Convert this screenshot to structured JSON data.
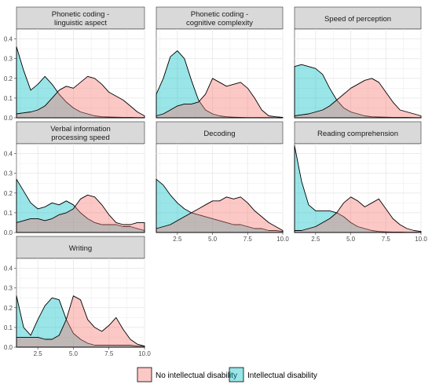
{
  "colors": {
    "no_id_fill": "#f8766d",
    "id_fill": "#00bfc4",
    "strip_bg": "#d9d9d9",
    "grid": "#ebebeb",
    "outline": "#000000"
  },
  "legend": {
    "items": [
      {
        "label": "No intellectual disability",
        "color": "#f8766d"
      },
      {
        "label": "Intellectual disability",
        "color": "#00bfc4"
      }
    ],
    "position": "bottom"
  },
  "chart_data": {
    "type": "area",
    "subtype": "density faceted",
    "title": "",
    "xlabel": "",
    "ylabel": "",
    "xlim": [
      1,
      10
    ],
    "ylim": [
      0,
      0.45
    ],
    "grid": true,
    "x_ticks": [
      "2.5",
      "5.0",
      "7.5",
      "10.0"
    ],
    "y_ticks": [
      "0.0",
      "0.1",
      "0.2",
      "0.3",
      "0.4"
    ],
    "series_names": [
      "No intellectual disability",
      "Intellectual disability"
    ],
    "panels": [
      {
        "title_lines": [
          "Phonetic coding -",
          "linguistic aspect"
        ],
        "series": [
          {
            "name": "No intellectual disability",
            "x": [
              1,
              1.5,
              2,
              2.5,
              3,
              3.5,
              4,
              4.5,
              5,
              5.5,
              6,
              6.5,
              7,
              7.5,
              8,
              8.5,
              9,
              9.5,
              10
            ],
            "y": [
              0.02,
              0.025,
              0.03,
              0.04,
              0.06,
              0.1,
              0.14,
              0.16,
              0.15,
              0.18,
              0.21,
              0.2,
              0.17,
              0.13,
              0.11,
              0.09,
              0.06,
              0.03,
              0.01
            ]
          },
          {
            "name": "Intellectual disability",
            "x": [
              1,
              1.5,
              2,
              2.5,
              3,
              3.5,
              4,
              4.5,
              5,
              5.5,
              6,
              6.5,
              7,
              7.5,
              8,
              8.5,
              9,
              9.5,
              10
            ],
            "y": [
              0.36,
              0.24,
              0.14,
              0.17,
              0.21,
              0.17,
              0.12,
              0.08,
              0.05,
              0.03,
              0.02,
              0.01,
              0.005,
              0.004,
              0.003,
              0.002,
              0.002,
              0.001,
              0.001
            ]
          }
        ]
      },
      {
        "title_lines": [
          "Phonetic coding -",
          "cognitive complexity"
        ],
        "series": [
          {
            "name": "No intellectual disability",
            "x": [
              1,
              1.5,
              2,
              2.5,
              3,
              3.5,
              4,
              4.5,
              5,
              5.5,
              6,
              6.5,
              7,
              7.5,
              8,
              8.5,
              9,
              9.5,
              10
            ],
            "y": [
              0.01,
              0.02,
              0.04,
              0.06,
              0.07,
              0.07,
              0.08,
              0.12,
              0.2,
              0.18,
              0.16,
              0.17,
              0.18,
              0.15,
              0.1,
              0.04,
              0.01,
              0.005,
              0.002
            ]
          },
          {
            "name": "Intellectual disability",
            "x": [
              1,
              1.5,
              2,
              2.5,
              3,
              3.5,
              4,
              4.5,
              5,
              5.5,
              6,
              6.5,
              7,
              7.5,
              8,
              8.5,
              9,
              9.5,
              10
            ],
            "y": [
              0.12,
              0.2,
              0.31,
              0.34,
              0.3,
              0.19,
              0.09,
              0.04,
              0.02,
              0.01,
              0.005,
              0.003,
              0.002,
              0.001,
              0.001,
              0.001,
              0.001,
              0.0,
              0.0
            ]
          }
        ]
      },
      {
        "title_lines": [
          "Speed of perception"
        ],
        "series": [
          {
            "name": "No intellectual disability",
            "x": [
              1,
              1.5,
              2,
              2.5,
              3,
              3.5,
              4,
              4.5,
              5,
              5.5,
              6,
              6.5,
              7,
              7.5,
              8,
              8.5,
              9,
              9.5,
              10
            ],
            "y": [
              0.01,
              0.015,
              0.02,
              0.03,
              0.04,
              0.06,
              0.09,
              0.12,
              0.15,
              0.17,
              0.19,
              0.2,
              0.18,
              0.13,
              0.08,
              0.04,
              0.03,
              0.02,
              0.01
            ]
          },
          {
            "name": "Intellectual disability",
            "x": [
              1,
              1.5,
              2,
              2.5,
              3,
              3.5,
              4,
              4.5,
              5,
              5.5,
              6,
              6.5,
              7,
              7.5,
              8,
              8.5,
              9,
              9.5,
              10
            ],
            "y": [
              0.26,
              0.27,
              0.26,
              0.25,
              0.22,
              0.15,
              0.09,
              0.05,
              0.03,
              0.02,
              0.01,
              0.005,
              0.004,
              0.003,
              0.002,
              0.002,
              0.002,
              0.001,
              0.001
            ]
          }
        ]
      },
      {
        "title_lines": [
          "Verbal information",
          "processing speed"
        ],
        "series": [
          {
            "name": "No intellectual disability",
            "x": [
              1,
              1.5,
              2,
              2.5,
              3,
              3.5,
              4,
              4.5,
              5,
              5.5,
              6,
              6.5,
              7,
              7.5,
              8,
              8.5,
              9,
              9.5,
              10
            ],
            "y": [
              0.05,
              0.06,
              0.07,
              0.07,
              0.06,
              0.07,
              0.09,
              0.1,
              0.12,
              0.17,
              0.19,
              0.18,
              0.14,
              0.09,
              0.05,
              0.04,
              0.04,
              0.05,
              0.05
            ]
          },
          {
            "name": "Intellectual disability",
            "x": [
              1,
              1.5,
              2,
              2.5,
              3,
              3.5,
              4,
              4.5,
              5,
              5.5,
              6,
              6.5,
              7,
              7.5,
              8,
              8.5,
              9,
              9.5,
              10
            ],
            "y": [
              0.27,
              0.21,
              0.15,
              0.12,
              0.13,
              0.15,
              0.14,
              0.16,
              0.14,
              0.1,
              0.07,
              0.05,
              0.04,
              0.04,
              0.04,
              0.03,
              0.03,
              0.02,
              0.01
            ]
          }
        ]
      },
      {
        "title_lines": [
          "Decoding"
        ],
        "series": [
          {
            "name": "No intellectual disability",
            "x": [
              1,
              1.5,
              2,
              2.5,
              3,
              3.5,
              4,
              4.5,
              5,
              5.5,
              6,
              6.5,
              7,
              7.5,
              8,
              8.5,
              9,
              9.5,
              10
            ],
            "y": [
              0.02,
              0.03,
              0.04,
              0.06,
              0.08,
              0.1,
              0.12,
              0.14,
              0.16,
              0.16,
              0.18,
              0.17,
              0.18,
              0.15,
              0.11,
              0.08,
              0.05,
              0.03,
              0.01
            ]
          },
          {
            "name": "Intellectual disability",
            "x": [
              1,
              1.5,
              2,
              2.5,
              3,
              3.5,
              4,
              4.5,
              5,
              5.5,
              6,
              6.5,
              7,
              7.5,
              8,
              8.5,
              9,
              9.5,
              10
            ],
            "y": [
              0.27,
              0.24,
              0.19,
              0.15,
              0.12,
              0.1,
              0.09,
              0.08,
              0.07,
              0.06,
              0.05,
              0.04,
              0.04,
              0.03,
              0.02,
              0.02,
              0.01,
              0.01,
              0.005
            ]
          }
        ]
      },
      {
        "title_lines": [
          "Reading comprehension"
        ],
        "series": [
          {
            "name": "No intellectual disability",
            "x": [
              1,
              1.5,
              2,
              2.5,
              3,
              3.5,
              4,
              4.5,
              5,
              5.5,
              6,
              6.5,
              7,
              7.5,
              8,
              8.5,
              9,
              9.5,
              10
            ],
            "y": [
              0.01,
              0.01,
              0.02,
              0.03,
              0.05,
              0.07,
              0.1,
              0.15,
              0.18,
              0.16,
              0.13,
              0.15,
              0.17,
              0.12,
              0.07,
              0.04,
              0.02,
              0.01,
              0.005
            ]
          },
          {
            "name": "Intellectual disability",
            "x": [
              1,
              1.5,
              2,
              2.5,
              3,
              3.5,
              4,
              4.5,
              5,
              5.5,
              6,
              6.5,
              7,
              7.5,
              8,
              8.5,
              9,
              9.5,
              10
            ],
            "y": [
              0.44,
              0.26,
              0.14,
              0.11,
              0.11,
              0.11,
              0.1,
              0.08,
              0.05,
              0.03,
              0.02,
              0.01,
              0.005,
              0.003,
              0.002,
              0.002,
              0.001,
              0.001,
              0.001
            ]
          }
        ]
      },
      {
        "title_lines": [
          "Writing"
        ],
        "series": [
          {
            "name": "No intellectual disability",
            "x": [
              1,
              1.5,
              2,
              2.5,
              3,
              3.5,
              4,
              4.5,
              5,
              5.5,
              6,
              6.5,
              7,
              7.5,
              8,
              8.5,
              9,
              9.5,
              10
            ],
            "y": [
              0.05,
              0.05,
              0.05,
              0.05,
              0.04,
              0.04,
              0.06,
              0.14,
              0.26,
              0.24,
              0.14,
              0.1,
              0.08,
              0.11,
              0.15,
              0.09,
              0.04,
              0.015,
              0.005
            ]
          },
          {
            "name": "Intellectual disability",
            "x": [
              1,
              1.5,
              2,
              2.5,
              3,
              3.5,
              4,
              4.5,
              5,
              5.5,
              6,
              6.5,
              7,
              7.5,
              8,
              8.5,
              9,
              9.5,
              10
            ],
            "y": [
              0.26,
              0.1,
              0.06,
              0.14,
              0.21,
              0.25,
              0.24,
              0.14,
              0.07,
              0.04,
              0.02,
              0.01,
              0.01,
              0.01,
              0.01,
              0.01,
              0.01,
              0.005,
              0.005
            ]
          }
        ]
      }
    ]
  }
}
